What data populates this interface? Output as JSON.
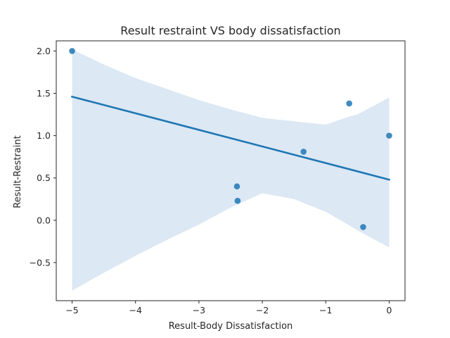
{
  "chart_data": {
    "type": "scatter",
    "title": "Result restraint VS body dissatisfaction",
    "xlabel": "Result-Body Dissatisfaction",
    "ylabel": "Result-Restraint",
    "xlim": [
      -5.25,
      0.25
    ],
    "ylim": [
      -0.95,
      2.12
    ],
    "xticks": [
      -5,
      -4,
      -3,
      -2,
      -1,
      0
    ],
    "yticks": [
      -0.5,
      0.0,
      0.5,
      1.0,
      1.5,
      2.0
    ],
    "xtick_labels": [
      "−5",
      "−4",
      "−3",
      "−2",
      "−1",
      "0"
    ],
    "ytick_labels": [
      "−0.5",
      "0.0",
      "0.5",
      "1.0",
      "1.5",
      "2.0"
    ],
    "grid": false,
    "points": [
      {
        "x": -5.0,
        "y": 2.0
      },
      {
        "x": -2.4,
        "y": 0.4
      },
      {
        "x": -2.39,
        "y": 0.23
      },
      {
        "x": -1.35,
        "y": 0.81
      },
      {
        "x": -0.63,
        "y": 1.38
      },
      {
        "x": -0.41,
        "y": -0.08
      },
      {
        "x": 0.0,
        "y": 1.0
      }
    ],
    "regression_line": {
      "x": [
        -5.0,
        0.0
      ],
      "y": [
        1.46,
        0.48
      ]
    },
    "confidence_band": {
      "x": [
        -5.0,
        -4.5,
        -4.0,
        -3.5,
        -3.0,
        -2.5,
        -2.0,
        -1.5,
        -1.0,
        -0.65,
        -0.5,
        0.0
      ],
      "upper": [
        2.02,
        1.84,
        1.68,
        1.55,
        1.42,
        1.31,
        1.21,
        1.17,
        1.13,
        1.22,
        1.25,
        1.45
      ],
      "lower": [
        -0.83,
        -0.62,
        -0.42,
        -0.23,
        -0.05,
        0.15,
        0.32,
        0.25,
        0.1,
        -0.05,
        -0.12,
        -0.32
      ]
    },
    "colors": {
      "points": "#1f77b4",
      "line": "#1f77b4",
      "band": "#dce8f4",
      "axes": "#262626"
    }
  }
}
